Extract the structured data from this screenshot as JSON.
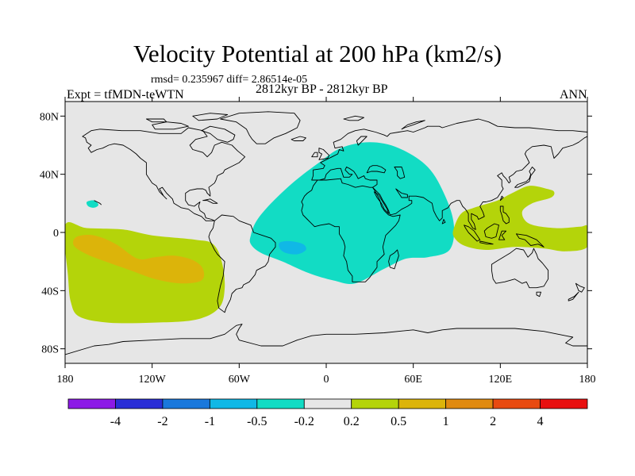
{
  "title": "Velocity Potential at 200 hPa (km2/s)",
  "stats": "rmsd= 0.235967 diff= 2.86514e-05",
  "left_label": "Expt = tfMDN-teWTN",
  "center_label": "2812kyr BP - 2812kyr BP",
  "right_label": "ANN",
  "map": {
    "ocean_color": "#e6e6e6",
    "coast_color": "#000000",
    "lon_range": [
      -180,
      180
    ],
    "lat_range": [
      -90,
      90
    ],
    "x_ticks": [
      {
        "lon": -180,
        "label": "180"
      },
      {
        "lon": -120,
        "label": "120W"
      },
      {
        "lon": -60,
        "label": "60W"
      },
      {
        "lon": 0,
        "label": "0"
      },
      {
        "lon": 60,
        "label": "60E"
      },
      {
        "lon": 120,
        "label": "120E"
      },
      {
        "lon": 180,
        "label": "180"
      }
    ],
    "y_ticks": [
      {
        "lat": 80,
        "label": "80N"
      },
      {
        "lat": 40,
        "label": "40N"
      },
      {
        "lat": 0,
        "label": "0"
      },
      {
        "lat": -40,
        "label": "40S"
      },
      {
        "lat": -80,
        "label": "80S"
      }
    ]
  },
  "colorbar": {
    "colors": [
      "#8c1ae6",
      "#2a2ed6",
      "#1a78dc",
      "#10b8e6",
      "#12dcc4",
      "#e6e6e6",
      "#b4d40a",
      "#dcb40a",
      "#e08a10",
      "#e84a10",
      "#e81010"
    ],
    "labels": [
      "-4",
      "-2",
      "-1",
      "-0.5",
      "-0.2",
      "0.2",
      "0.5",
      "1",
      "2",
      "4"
    ]
  },
  "regions": [
    {
      "name": "atlantic-africa-negative",
      "level": "-0.5 to -0.2",
      "color": "#12dcc4",
      "outline": [
        [
          -52,
          -2
        ],
        [
          -48,
          8
        ],
        [
          -38,
          20
        ],
        [
          -22,
          35
        ],
        [
          -5,
          48
        ],
        [
          10,
          58
        ],
        [
          30,
          62
        ],
        [
          50,
          58
        ],
        [
          70,
          45
        ],
        [
          82,
          25
        ],
        [
          88,
          5
        ],
        [
          85,
          -12
        ],
        [
          70,
          -17
        ],
        [
          55,
          -18
        ],
        [
          40,
          -25
        ],
        [
          20,
          -35
        ],
        [
          5,
          -33
        ],
        [
          -12,
          -28
        ],
        [
          -30,
          -20
        ],
        [
          -45,
          -14
        ],
        [
          -52,
          -8
        ]
      ]
    },
    {
      "name": "atlantic-negative-core",
      "level": "-1 to -0.5",
      "color": "#10b8e6",
      "outline": [
        [
          -32,
          -7
        ],
        [
          -25,
          -6
        ],
        [
          -16,
          -8
        ],
        [
          -14,
          -12
        ],
        [
          -20,
          -15
        ],
        [
          -28,
          -14
        ],
        [
          -32,
          -11
        ]
      ]
    },
    {
      "name": "pacific-negative-small",
      "level": "-0.5 to -0.2",
      "color": "#12dcc4",
      "outline": [
        [
          -165,
          21
        ],
        [
          -160,
          22
        ],
        [
          -157,
          19
        ],
        [
          -160,
          17
        ],
        [
          -164,
          18
        ]
      ]
    },
    {
      "name": "east-pacific-positive",
      "level": "0.2 to 0.5",
      "color": "#b4d40a",
      "outline": [
        [
          -180,
          5
        ],
        [
          -165,
          3
        ],
        [
          -140,
          2
        ],
        [
          -120,
          -2
        ],
        [
          -90,
          -5
        ],
        [
          -78,
          -8
        ],
        [
          -72,
          -20
        ],
        [
          -70,
          -38
        ],
        [
          -74,
          -52
        ],
        [
          -90,
          -60
        ],
        [
          -120,
          -62
        ],
        [
          -150,
          -62
        ],
        [
          -170,
          -58
        ],
        [
          -176,
          -48
        ],
        [
          -178,
          -30
        ]
      ]
    },
    {
      "name": "east-pacific-positive-core",
      "level": "0.5 to 1",
      "color": "#dcb40a",
      "outline": [
        [
          -172,
          -3
        ],
        [
          -160,
          -2
        ],
        [
          -145,
          -8
        ],
        [
          -130,
          -18
        ],
        [
          -118,
          -17
        ],
        [
          -105,
          -16
        ],
        [
          -92,
          -19
        ],
        [
          -85,
          -25
        ],
        [
          -86,
          -33
        ],
        [
          -100,
          -35
        ],
        [
          -118,
          -32
        ],
        [
          -135,
          -26
        ],
        [
          -152,
          -20
        ],
        [
          -165,
          -15
        ],
        [
          -174,
          -9
        ]
      ]
    },
    {
      "name": "west-pacific-positive",
      "level": "0.2 to 0.5",
      "color": "#b4d40a",
      "outline": [
        [
          88,
          3
        ],
        [
          93,
          13
        ],
        [
          102,
          17
        ],
        [
          118,
          22
        ],
        [
          128,
          27
        ],
        [
          140,
          32
        ],
        [
          152,
          30
        ],
        [
          157,
          28
        ],
        [
          155,
          24
        ],
        [
          142,
          20
        ],
        [
          135,
          14
        ],
        [
          140,
          6
        ],
        [
          158,
          3
        ],
        [
          175,
          4
        ],
        [
          180,
          4
        ],
        [
          180,
          -10
        ],
        [
          165,
          -13
        ],
        [
          150,
          -11
        ],
        [
          130,
          -10
        ],
        [
          110,
          -12
        ],
        [
          95,
          -9
        ],
        [
          88,
          -3
        ]
      ]
    }
  ]
}
